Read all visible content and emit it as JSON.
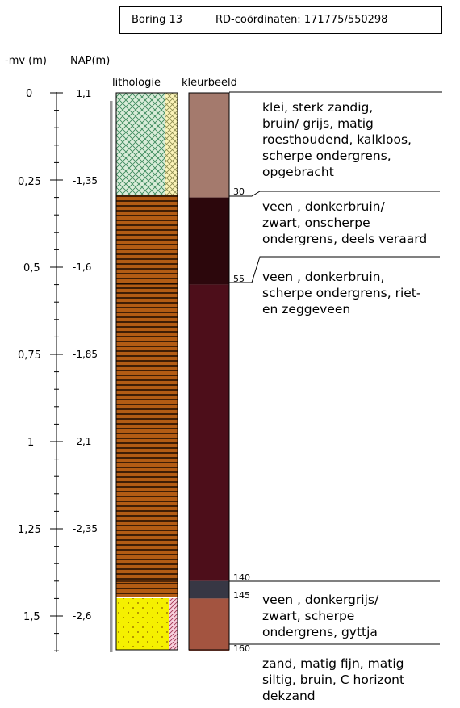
{
  "header": {
    "boring": "Boring 13",
    "rd": "RD-coördinaten: 171775/550298"
  },
  "columns": {
    "mv": "-mv (m)",
    "nap": "NAP(m)",
    "lithology": "lithologie",
    "color": "kleurbeeld"
  },
  "scale": {
    "depth_labels": [
      "0",
      "0,25",
      "0,5",
      "0,75",
      "1",
      "1,25",
      "1,5"
    ],
    "nap_labels": [
      "-1,1",
      "-1,35",
      "-1,6",
      "-1,85",
      "-2,1",
      "-2,35",
      "-2,6"
    ]
  },
  "layers": [
    {
      "top_cm": 0,
      "bottom_cm": 30,
      "color": "#a47a6d",
      "lithology": "klei",
      "description": "klei, sterk zandig,\nbruin/ grijs, matig\nroesthoudend, kalkloos,\nscherpe ondergrens,\nopgebracht"
    },
    {
      "top_cm": 30,
      "bottom_cm": 55,
      "color": "#2c070c",
      "lithology": "veen",
      "description": "veen , donkerbruin/\nzwart, onscherpe\nondergrens, deels veraard"
    },
    {
      "top_cm": 55,
      "bottom_cm": 140,
      "color": "#4d0e1a",
      "lithology": "veen",
      "description": "veen , donkerbruin,\nscherpe ondergrens, riet-\nen zeggeveen"
    },
    {
      "top_cm": 140,
      "bottom_cm": 145,
      "color": "#373744",
      "lithology": "veen",
      "description": "veen , donkergrijs/\nzwart, scherpe\nondergrens, gyttja"
    },
    {
      "top_cm": 145,
      "bottom_cm": 160,
      "color": "#a35440",
      "lithology": "zand",
      "description": "zand, matig fijn, matig\nsiltig, bruin, C horizont\ndekzand"
    }
  ],
  "boundary_labels": [
    "30",
    "55",
    "140",
    "145",
    "160"
  ]
}
